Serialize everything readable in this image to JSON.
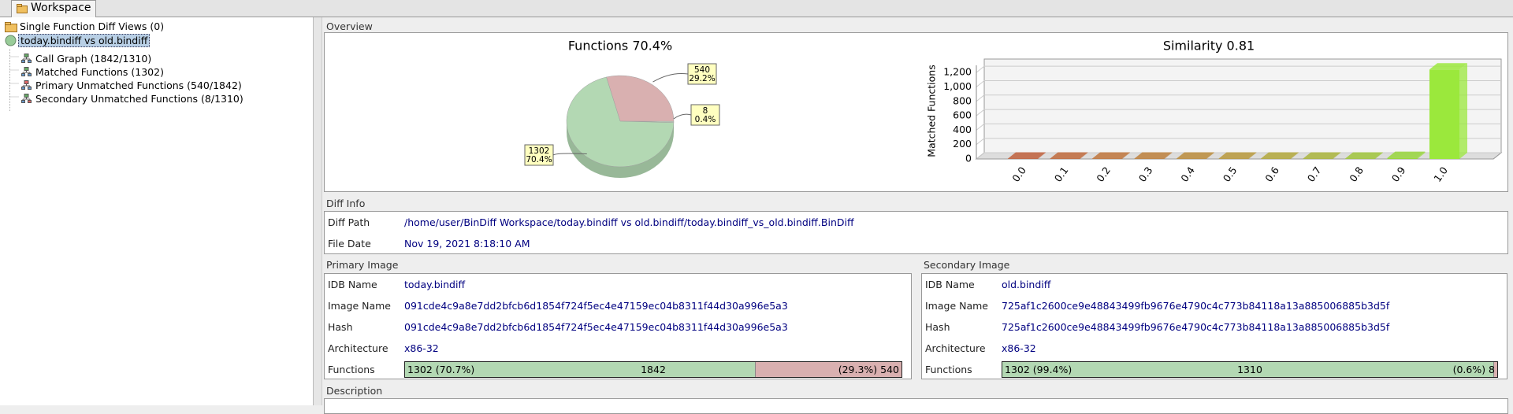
{
  "tabs": [
    "Workspace"
  ],
  "tree": {
    "root": "Single Function Diff Views (0)",
    "diff": "today.bindiff vs old.bindiff",
    "children": [
      "Call Graph (1842/1310)",
      "Matched Functions (1302)",
      "Primary Unmatched Functions (540/1842)",
      "Secondary Unmatched Functions (8/1310)"
    ]
  },
  "overview": {
    "title": "Overview",
    "pie_chart": {
      "type": "pie",
      "title": "Functions 70.4%",
      "values": [
        1302,
        540,
        8
      ],
      "percent_labels": [
        "70.4%",
        "29.2%",
        "0.4%"
      ],
      "colors": [
        "#b3d8b3",
        "#d9b0b0",
        "#c6d9c6"
      ]
    },
    "bar_chart": {
      "type": "bar",
      "title": "Similarity 0.81",
      "ylabel": "Matched Functions",
      "categories": [
        "0.0",
        "0.1",
        "0.2",
        "0.3",
        "0.4",
        "0.5",
        "0.6",
        "0.7",
        "0.8",
        "0.9",
        "1.0"
      ],
      "values": [
        5,
        5,
        5,
        5,
        5,
        5,
        5,
        5,
        5,
        15,
        1242
      ],
      "colors": [
        "#c0603c",
        "#c06a3c",
        "#bf753c",
        "#bd803c",
        "#bb8c3c",
        "#b8993c",
        "#b3a83c",
        "#aab53c",
        "#a0c53c",
        "#98d63c",
        "#9be83c"
      ],
      "ylim": [
        0,
        1300
      ],
      "yticks": [
        0,
        200,
        400,
        600,
        800,
        {
          "value": 1000,
          "label": "1,000"
        },
        {
          "value": 1200,
          "label": "1,200"
        }
      ]
    }
  },
  "diff_info": {
    "title": "Diff Info",
    "rows": [
      [
        "Diff Path",
        "/home/user/BinDiff Workspace/today.bindiff vs old.bindiff/today.bindiff_vs_old.bindiff.BinDiff"
      ],
      [
        "File Date",
        "Nov 19, 2021 8:18:10 AM"
      ]
    ]
  },
  "primary": {
    "title": "Primary Image",
    "rows": [
      [
        "IDB Name",
        "today.bindiff"
      ],
      [
        "Image Name",
        "091cde4c9a8e7dd2bfcb6d1854f724f5ec4e47159ec04b8311f44d30a996e5a3"
      ],
      [
        "Hash",
        "091cde4c9a8e7dd2bfcb6d1854f724f5ec4e47159ec04b8311f44d30a996e5a3"
      ],
      [
        "Architecture",
        "x86-32"
      ]
    ],
    "functions": {
      "label": "Functions",
      "matched": 1302,
      "matched_label": "1302 (70.7%)",
      "total": 1842,
      "unmatched": 540,
      "unmatched_label": "(29.3%) 540"
    }
  },
  "secondary": {
    "title": "Secondary Image",
    "rows": [
      [
        "IDB Name",
        "old.bindiff"
      ],
      [
        "Image Name",
        "725af1c2600ce9e48843499fb9676e4790c4c773b84118a13a885006885b3d5f"
      ],
      [
        "Hash",
        "725af1c2600ce9e48843499fb9676e4790c4c773b84118a13a885006885b3d5f"
      ],
      [
        "Architecture",
        "x86-32"
      ]
    ],
    "functions": {
      "label": "Functions",
      "matched": 1302,
      "matched_label": "1302 (99.4%)",
      "total": 1310,
      "unmatched": 8,
      "unmatched_label": "(0.6%) 8"
    }
  },
  "description": {
    "title": "Description"
  }
}
